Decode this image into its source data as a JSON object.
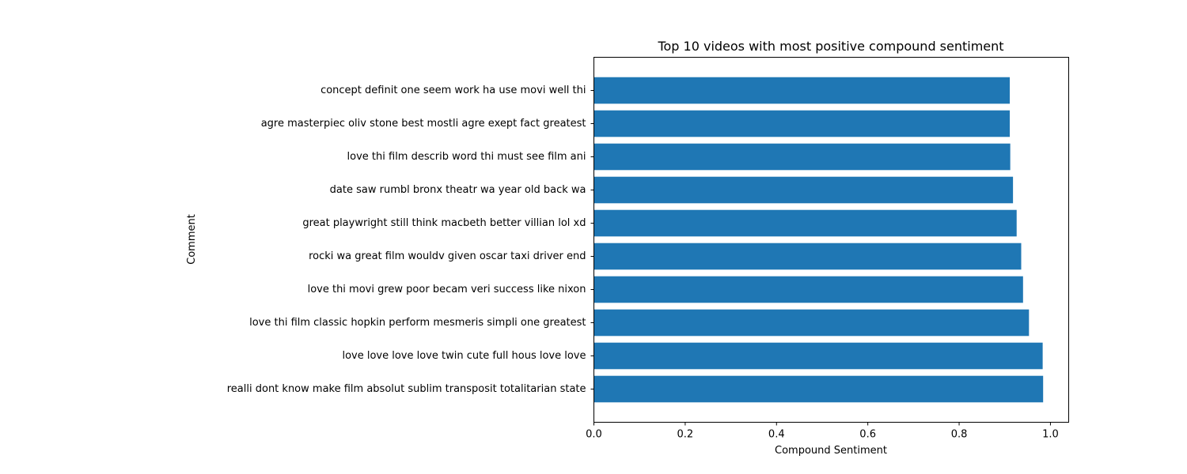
{
  "chart_data": {
    "type": "bar",
    "orientation": "horizontal",
    "title": "Top 10 videos with most positive compound sentiment",
    "xlabel": "Compound Sentiment",
    "ylabel": "Comment",
    "xlim": [
      0,
      1.04
    ],
    "xticks": [
      "0.0",
      "0.2",
      "0.4",
      "0.6",
      "0.8",
      "1.0"
    ],
    "bar_color": "#1f77b4",
    "grid": false,
    "categories": [
      "realli dont know make film absolut sublim transposit totalitarian state",
      "love love love love twin cute full hous love love",
      "love thi film classic hopkin perform mesmeris simpli one greatest",
      "love thi movi grew poor becam veri success like nixon",
      "rocki wa great film wouldv given oscar taxi driver end",
      "great playwright still think macbeth better villian lol xd",
      "date saw rumbl bronx theatr wa year old back wa",
      "love thi film describ word thi must see film ani",
      "agre masterpiec oliv stone best mostli agre exept fact greatest",
      "concept definit one seem work ha use movi well thi"
    ],
    "values": [
      0.984,
      0.983,
      0.953,
      0.94,
      0.936,
      0.926,
      0.918,
      0.912,
      0.911,
      0.911
    ]
  }
}
